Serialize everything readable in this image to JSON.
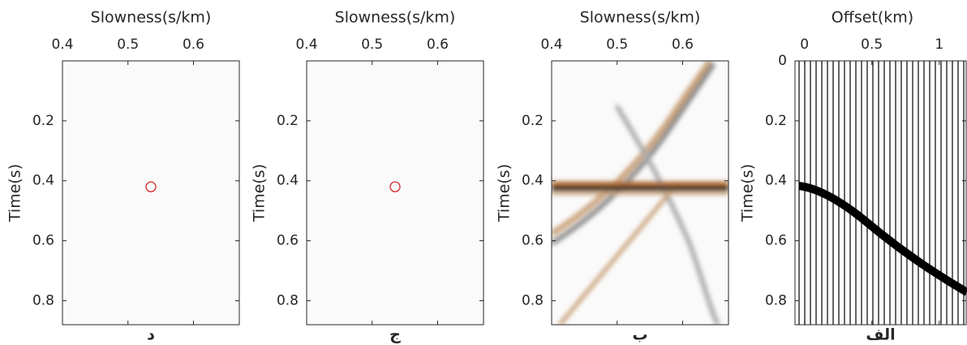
{
  "chart_data": [
    {
      "type": "image",
      "x_label": "Slowness(s/km)",
      "y_label": "Time(s)",
      "caption": "د",
      "xlim": [
        0.4,
        0.67
      ],
      "xticks": [
        0.4,
        0.5,
        0.6
      ],
      "ylim": [
        0,
        0.88
      ],
      "yticks": [
        0.2,
        0.4,
        0.6,
        0.8
      ],
      "markers": {
        "x": [
          0.535
        ],
        "y": [
          0.42
        ],
        "color": "#d62728"
      }
    },
    {
      "type": "image",
      "x_label": "Slowness(s/km)",
      "y_label": "Time(s)",
      "caption": "ج",
      "xlim": [
        0.4,
        0.67
      ],
      "xticks": [
        0.4,
        0.5,
        0.6
      ],
      "ylim": [
        0,
        0.88
      ],
      "yticks": [
        0.2,
        0.4,
        0.6,
        0.8
      ],
      "markers": {
        "x": [
          0.535
        ],
        "y": [
          0.42
        ],
        "color": "#d62728"
      }
    },
    {
      "type": "image",
      "x_label": "Slowness(s/km)",
      "y_label": "Time(s)",
      "caption": "ب",
      "xlim": [
        0.4,
        0.67
      ],
      "xticks": [
        0.4,
        0.5,
        0.6
      ],
      "ylim": [
        0,
        0.88
      ],
      "yticks": [
        0.2,
        0.4,
        0.6,
        0.8
      ]
    },
    {
      "type": "wiggle",
      "x_label": "Offset(km)",
      "y_label": "Time(s)",
      "caption": "الف",
      "xlim": [
        -0.07,
        1.2
      ],
      "xticks": [
        0,
        0.5,
        1
      ],
      "ylim": [
        0,
        0.88
      ],
      "yticks": [
        0,
        0.2,
        0.4,
        0.6,
        0.8
      ]
    }
  ]
}
